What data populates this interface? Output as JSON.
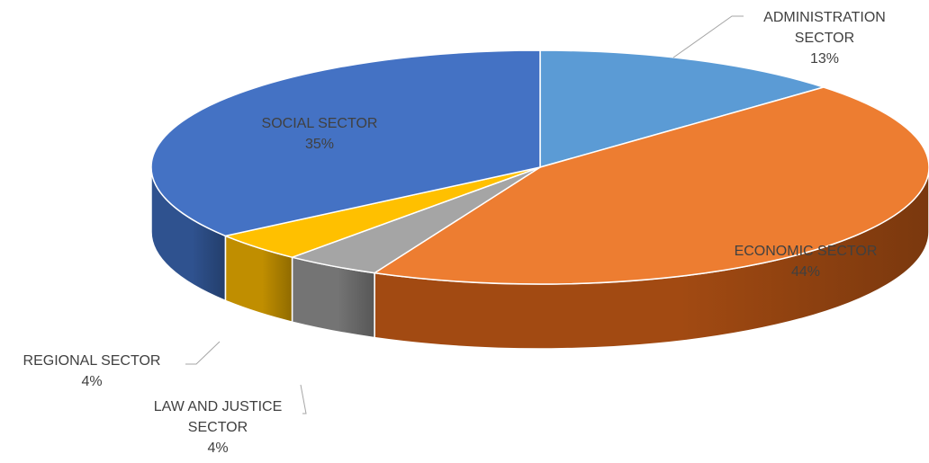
{
  "chart_data": {
    "type": "pie",
    "style": "3d",
    "start_angle_deg": 0,
    "direction": "clockwise",
    "series": [
      {
        "name": "",
        "values": [
          13,
          44,
          4,
          4,
          35
        ]
      }
    ],
    "slices": [
      {
        "key": "administration",
        "label_lines": [
          "ADMINISTRATION",
          "SECTOR"
        ],
        "percent_label": "13%",
        "value": 13,
        "color": "#5B9BD5",
        "side_color": "#3F77AC"
      },
      {
        "key": "economic",
        "label_lines": [
          "ECONOMIC SECTOR"
        ],
        "percent_label": "44%",
        "value": 44,
        "color": "#ED7D31",
        "side_color": "#A24A12"
      },
      {
        "key": "law-justice",
        "label_lines": [
          "LAW AND JUSTICE",
          "SECTOR"
        ],
        "percent_label": "4%",
        "value": 4,
        "color": "#A5A5A5",
        "side_color": "#747474"
      },
      {
        "key": "regional",
        "label_lines": [
          "REGIONAL SECTOR"
        ],
        "percent_label": "4%",
        "value": 4,
        "color": "#FFC000",
        "side_color": "#C08E00"
      },
      {
        "key": "social",
        "label_lines": [
          "SOCIAL SECTOR"
        ],
        "percent_label": "35%",
        "value": 35,
        "color": "#4472C4",
        "side_color": "#2F528F"
      }
    ],
    "legend": "none",
    "data_labels": "category name and percentage"
  }
}
